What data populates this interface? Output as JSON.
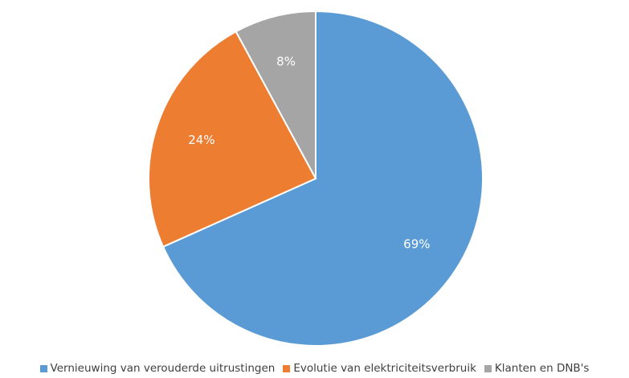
{
  "chart_data": {
    "type": "pie",
    "title": "",
    "slices": [
      {
        "label": "Vernieuwing van verouderde uitrustingen",
        "value": 69,
        "value_label": "69%",
        "color": "#5b9bd5"
      },
      {
        "label": "Evolutie van elektriciteitsverbruik",
        "value": 24,
        "value_label": "24%",
        "color": "#ed7d31"
      },
      {
        "label": "Klanten en DNB's",
        "value": 8,
        "value_label": "8%",
        "color": "#a5a5a5"
      }
    ],
    "start": "12 o'clock",
    "direction": "clockwise",
    "legend_position": "bottom"
  }
}
